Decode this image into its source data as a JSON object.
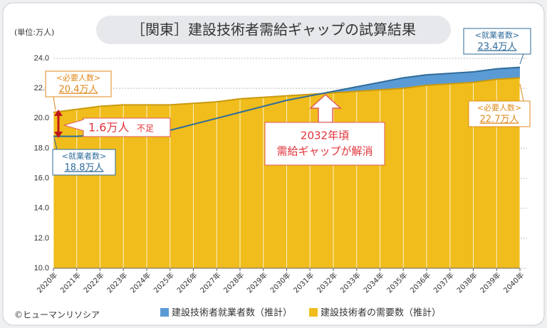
{
  "chart_data": {
    "type": "area",
    "title": "［関東］建設技術者需給ギャップの試算結果",
    "unit_label": "(単位:万人)",
    "categories": [
      "2020年",
      "2021年",
      "2022年",
      "2023年",
      "2024年",
      "2025年",
      "2026年",
      "2027年",
      "2028年",
      "2029年",
      "2030年",
      "2031年",
      "2032年",
      "2033年",
      "2034年",
      "2035年",
      "2036年",
      "2037年",
      "2038年",
      "2039年",
      "2040年"
    ],
    "series": [
      {
        "name": "建設技術者就業者数（推計）",
        "color": "#5b9bd5",
        "values": [
          18.8,
          18.8,
          18.9,
          19.0,
          19.1,
          19.2,
          19.6,
          20.0,
          20.4,
          20.8,
          21.2,
          21.5,
          21.8,
          22.1,
          22.4,
          22.7,
          22.9,
          23.0,
          23.1,
          23.3,
          23.4
        ]
      },
      {
        "name": "建設技術者の需要数（推計）",
        "color": "#f0bd1c",
        "values": [
          20.4,
          20.6,
          20.8,
          20.9,
          20.9,
          20.9,
          21.0,
          21.1,
          21.3,
          21.4,
          21.5,
          21.6,
          21.7,
          21.8,
          21.9,
          22.0,
          22.2,
          22.3,
          22.4,
          22.6,
          22.7
        ]
      }
    ],
    "ylim": [
      10,
      24
    ],
    "yticks": [
      {
        "value": 10,
        "label": "10.0"
      },
      {
        "value": 12,
        "label": "12.0"
      },
      {
        "value": 14,
        "label": "14.0"
      },
      {
        "value": 16,
        "label": "16.0"
      },
      {
        "value": 18,
        "label": "18.0"
      },
      {
        "value": 20,
        "label": "20.0"
      },
      {
        "value": 22,
        "label": "22.0"
      },
      {
        "value": 24,
        "label": "24.0"
      }
    ],
    "grid": true,
    "annotations": {
      "demand_start": {
        "heading": "<必要人数>",
        "label": "20.4万人"
      },
      "employed_start": {
        "heading": "<就業者数>",
        "label": "18.8万人"
      },
      "employed_end": {
        "heading": "<就業者数>",
        "label": "23.4万人"
      },
      "demand_end": {
        "heading": "<必要人数>",
        "label": "22.7万人"
      },
      "shortage": {
        "label": "1.6万人",
        "suffix": "不足"
      },
      "resolved": {
        "line1": "2032年頃",
        "line2": "需給ギャップが解消"
      }
    },
    "copyright": "©ヒューマンリソシア"
  }
}
